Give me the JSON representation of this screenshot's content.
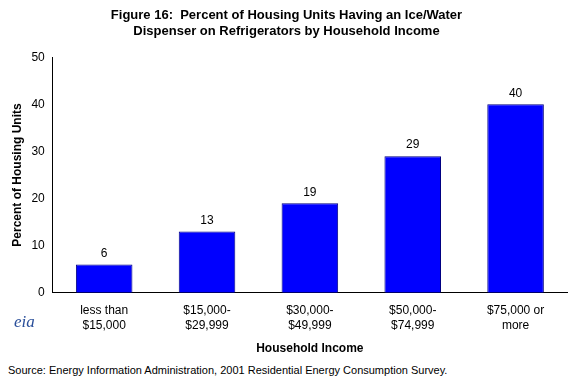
{
  "chart_data": {
    "type": "bar",
    "title": [
      "Figure 16:  Percent of Housing Units Having an Ice/Water",
      "Dispenser on Refrigerators by Household Income"
    ],
    "x_label": "Household Income",
    "y_label": "Percent of Housing Units",
    "categories": [
      [
        "less than",
        "$15,000"
      ],
      [
        "$15,000-",
        "$29,999"
      ],
      [
        "$30,000-",
        "$49,999"
      ],
      [
        "$50,000-",
        "$74,999"
      ],
      [
        "$75,000 or",
        "more"
      ]
    ],
    "values": [
      6,
      13,
      19,
      29,
      40
    ],
    "color": "#0000ff",
    "ylim": [
      0,
      50
    ],
    "yticks": [
      0,
      10,
      20,
      30,
      40,
      50
    ],
    "grid": false,
    "data_labels": true,
    "logo_text": "eia",
    "source": "Source:  Energy Information Administration, 2001 Residential Energy Consumption Survey."
  }
}
